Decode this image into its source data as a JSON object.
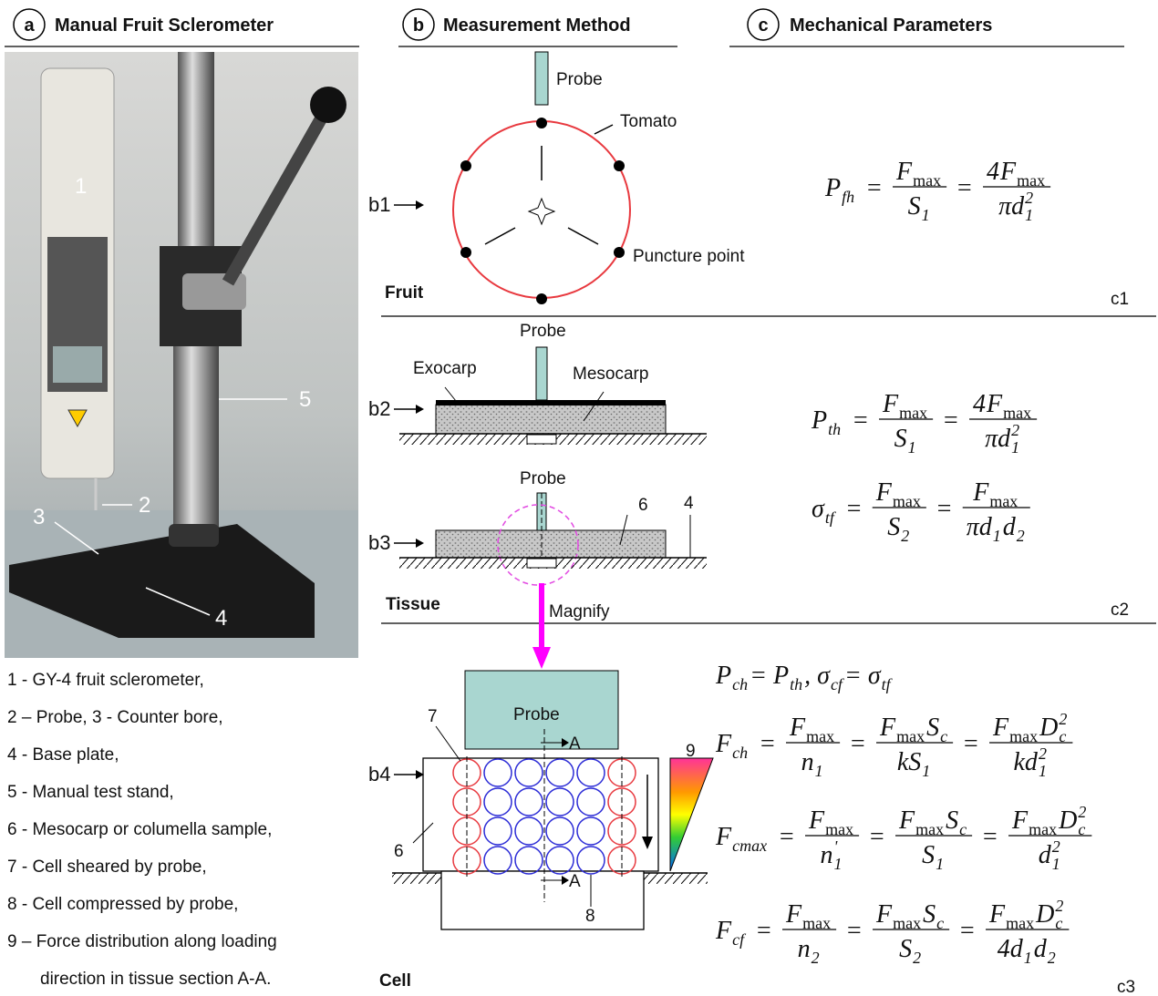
{
  "headers": [
    {
      "letter": "a",
      "title": "Manual Fruit Sclerometer"
    },
    {
      "letter": "b",
      "title": "Measurement Method"
    },
    {
      "letter": "c",
      "title": "Mechanical Parameters"
    }
  ],
  "photo_labels": [
    "1",
    "2",
    "3",
    "4",
    "5"
  ],
  "legend": [
    "1 - GY-4 fruit sclerometer,",
    "2 – Probe, 3 - Counter bore,",
    "4 - Base plate,",
    "5 - Manual test stand,",
    "6 - Mesocarp or columella sample,",
    "7 - Cell sheared by probe,",
    "8 - Cell compressed by probe,",
    "9 – Force distribution along loading",
    "direction in tissue section A-A."
  ],
  "diagram_labels": [
    "Probe",
    "Tomato",
    "Puncture point",
    "Fruit",
    "c1",
    "Probe",
    "Exocarp",
    "Mesocarp",
    "Probe",
    "6",
    "4",
    "Tissue",
    "Magnify",
    "c2",
    "Probe",
    "A",
    "A",
    "7",
    "9",
    "6",
    "8",
    "Cell",
    "c3"
  ],
  "row_labels": [
    "b1",
    "b2",
    "b3",
    "b4"
  ],
  "formulas": [
    [
      {
        "parts": [
          {
            "t": "P"
          },
          {
            "sub": "fh"
          }
        ]
      },
      {
        "parts": [
          {
            "t": "="
          }
        ]
      },
      {
        "num": [
          {
            "t": "F"
          },
          {
            "sub": "max"
          }
        ],
        "den": [
          {
            "t": "S"
          },
          {
            "sub": "1"
          }
        ]
      },
      {
        "parts": [
          {
            "t": "="
          }
        ]
      },
      {
        "num": [
          {
            "t": "4"
          },
          {
            "t": "F"
          },
          {
            "sub": "max"
          }
        ],
        "den": [
          {
            "t": "πd"
          },
          {
            "sup": "2"
          },
          {
            "sub": "1"
          }
        ]
      }
    ],
    [
      {
        "parts": [
          {
            "t": "P"
          },
          {
            "sub": "th"
          }
        ]
      },
      {
        "parts": [
          {
            "t": "="
          }
        ]
      },
      {
        "num": [
          {
            "t": "F"
          },
          {
            "sub": "max"
          }
        ],
        "den": [
          {
            "t": "S"
          },
          {
            "sub": "1"
          }
        ]
      },
      {
        "parts": [
          {
            "t": "="
          }
        ]
      },
      {
        "num": [
          {
            "t": "4"
          },
          {
            "t": "F"
          },
          {
            "sub": "max"
          }
        ],
        "den": [
          {
            "t": "πd"
          },
          {
            "sup": "2"
          },
          {
            "sub": "1"
          }
        ]
      }
    ],
    [
      {
        "parts": [
          {
            "t": "σ"
          },
          {
            "sub": "tf"
          }
        ]
      },
      {
        "parts": [
          {
            "t": "="
          }
        ]
      },
      {
        "num": [
          {
            "t": "F"
          },
          {
            "sub": "max"
          }
        ],
        "den": [
          {
            "t": "S"
          },
          {
            "sub": "2"
          }
        ]
      },
      {
        "parts": [
          {
            "t": "="
          }
        ]
      },
      {
        "num": [
          {
            "t": "F"
          },
          {
            "sub": "max"
          }
        ],
        "den": [
          {
            "t": "πd"
          },
          {
            "sub": "1"
          },
          {
            "t": "d"
          },
          {
            "sub": "2"
          }
        ]
      }
    ],
    [
      {
        "parts": [
          {
            "t": "P"
          },
          {
            "sub": "ch"
          },
          {
            "t": " = P"
          },
          {
            "sub": "th"
          },
          {
            "t": ",   σ"
          },
          {
            "sub": "cf"
          },
          {
            "t": " = σ"
          },
          {
            "sub": "tf"
          }
        ]
      }
    ],
    [
      {
        "parts": [
          {
            "t": "F"
          },
          {
            "sub": "ch"
          }
        ]
      },
      {
        "parts": [
          {
            "t": "="
          }
        ]
      },
      {
        "num": [
          {
            "t": "F"
          },
          {
            "sub": "max"
          }
        ],
        "den": [
          {
            "t": "n"
          },
          {
            "sub": "1"
          }
        ]
      },
      {
        "parts": [
          {
            "t": "="
          }
        ]
      },
      {
        "num": [
          {
            "t": "F"
          },
          {
            "sub": "max"
          },
          {
            "t": "S"
          },
          {
            "sub": "c"
          }
        ],
        "den": [
          {
            "t": "kS"
          },
          {
            "sub": "1"
          }
        ]
      },
      {
        "parts": [
          {
            "t": "="
          }
        ]
      },
      {
        "num": [
          {
            "t": "F"
          },
          {
            "sub": "max"
          },
          {
            "t": "D"
          },
          {
            "sup": "2"
          },
          {
            "sub": "c"
          }
        ],
        "den": [
          {
            "t": "kd"
          },
          {
            "sup": "2"
          },
          {
            "sub": "1"
          }
        ]
      }
    ],
    [
      {
        "parts": [
          {
            "t": "F"
          },
          {
            "sub": "cmax"
          }
        ]
      },
      {
        "parts": [
          {
            "t": "="
          }
        ]
      },
      {
        "num": [
          {
            "t": "F"
          },
          {
            "sub": "max"
          }
        ],
        "den": [
          {
            "t": "n"
          },
          {
            "sup": "'"
          },
          {
            "sub": "1"
          }
        ]
      },
      {
        "parts": [
          {
            "t": "="
          }
        ]
      },
      {
        "num": [
          {
            "t": "F"
          },
          {
            "sub": "max"
          },
          {
            "t": "S"
          },
          {
            "sub": "c"
          }
        ],
        "den": [
          {
            "t": "S"
          },
          {
            "sub": "1"
          }
        ]
      },
      {
        "parts": [
          {
            "t": "="
          }
        ]
      },
      {
        "num": [
          {
            "t": "F"
          },
          {
            "sub": "max"
          },
          {
            "t": "D"
          },
          {
            "sup": "2"
          },
          {
            "sub": "c"
          }
        ],
        "den": [
          {
            "t": "d"
          },
          {
            "sup": "2"
          },
          {
            "sub": "1"
          }
        ]
      }
    ],
    [
      {
        "parts": [
          {
            "t": "F"
          },
          {
            "sub": "cf"
          }
        ]
      },
      {
        "parts": [
          {
            "t": "="
          }
        ]
      },
      {
        "num": [
          {
            "t": "F"
          },
          {
            "sub": "max"
          }
        ],
        "den": [
          {
            "t": "n"
          },
          {
            "sub": "2"
          }
        ]
      },
      {
        "parts": [
          {
            "t": "="
          }
        ]
      },
      {
        "num": [
          {
            "t": "F"
          },
          {
            "sub": "max"
          },
          {
            "t": "S"
          },
          {
            "sub": "c"
          }
        ],
        "den": [
          {
            "t": "S"
          },
          {
            "sub": "2"
          }
        ]
      },
      {
        "parts": [
          {
            "t": "="
          }
        ]
      },
      {
        "num": [
          {
            "t": "F"
          },
          {
            "sub": "max"
          },
          {
            "t": "D"
          },
          {
            "sup": "2"
          },
          {
            "sub": "c"
          }
        ],
        "den": [
          {
            "t": "4d"
          },
          {
            "sub": "1"
          },
          {
            "t": "d"
          },
          {
            "sub": "2"
          }
        ]
      }
    ]
  ]
}
